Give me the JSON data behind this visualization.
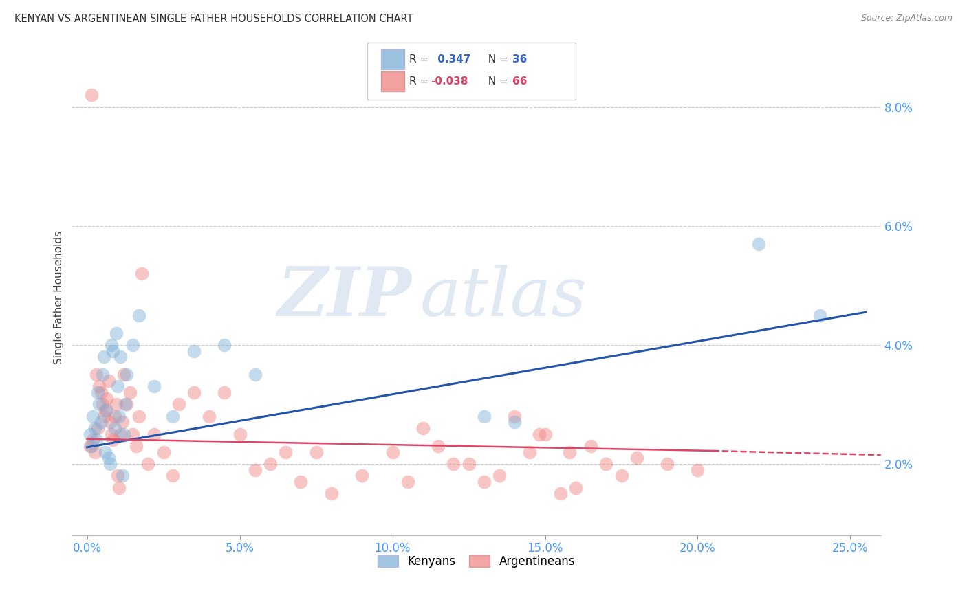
{
  "title": "KENYAN VS ARGENTINEAN SINGLE FATHER HOUSEHOLDS CORRELATION CHART",
  "source": "Source: ZipAtlas.com",
  "xlabel_vals": [
    0.0,
    5.0,
    10.0,
    15.0,
    20.0,
    25.0
  ],
  "ylabel_vals": [
    2.0,
    4.0,
    6.0,
    8.0
  ],
  "xlim": [
    -0.5,
    26.0
  ],
  "ylim": [
    0.8,
    8.8
  ],
  "ylabel": "Single Father Households",
  "watermark_zip": "ZIP",
  "watermark_atlas": "atlas",
  "kenyan_color": "#7aaed6",
  "argentinean_color": "#f08080",
  "kenyan_line_color": "#2255aa",
  "argentinean_line_color": "#dd4466",
  "background_color": "#ffffff",
  "grid_color": "#cccccc",
  "kenyan_x": [
    0.1,
    0.15,
    0.2,
    0.25,
    0.3,
    0.35,
    0.4,
    0.45,
    0.5,
    0.55,
    0.6,
    0.65,
    0.7,
    0.75,
    0.8,
    0.85,
    0.9,
    0.95,
    1.0,
    1.05,
    1.1,
    1.15,
    1.2,
    1.25,
    1.3,
    1.5,
    1.7,
    2.2,
    2.8,
    3.5,
    4.5,
    5.5,
    13.0,
    14.0,
    22.0,
    24.0
  ],
  "kenyan_y": [
    2.5,
    2.3,
    2.8,
    2.6,
    2.4,
    3.2,
    3.0,
    2.7,
    3.5,
    3.8,
    2.2,
    2.9,
    2.1,
    2.0,
    4.0,
    3.9,
    2.6,
    4.2,
    3.3,
    2.8,
    3.8,
    1.8,
    2.5,
    3.0,
    3.5,
    4.0,
    4.5,
    3.3,
    2.8,
    3.9,
    4.0,
    3.5,
    2.8,
    2.7,
    5.7,
    4.5
  ],
  "argentinean_x": [
    0.1,
    0.15,
    0.2,
    0.25,
    0.3,
    0.35,
    0.4,
    0.45,
    0.5,
    0.55,
    0.6,
    0.65,
    0.7,
    0.75,
    0.8,
    0.85,
    0.9,
    0.95,
    1.0,
    1.05,
    1.1,
    1.15,
    1.2,
    1.3,
    1.4,
    1.5,
    1.6,
    1.7,
    1.8,
    2.0,
    2.2,
    2.5,
    2.8,
    3.0,
    3.5,
    4.0,
    4.5,
    5.0,
    5.5,
    6.0,
    6.5,
    7.0,
    7.5,
    8.0,
    9.0,
    10.0,
    11.0,
    12.0,
    13.0,
    14.0,
    14.5,
    15.0,
    15.5,
    16.5,
    17.0,
    18.0,
    19.0,
    20.0,
    17.5,
    15.8,
    14.8,
    13.5,
    12.5,
    11.5,
    10.5,
    16.0
  ],
  "argentinean_y": [
    2.3,
    8.2,
    2.4,
    2.2,
    3.5,
    2.6,
    3.3,
    3.2,
    3.0,
    2.8,
    2.9,
    3.1,
    3.4,
    2.7,
    2.5,
    2.4,
    2.8,
    3.0,
    1.8,
    1.6,
    2.5,
    2.7,
    3.5,
    3.0,
    3.2,
    2.5,
    2.3,
    2.8,
    5.2,
    2.0,
    2.5,
    2.2,
    1.8,
    3.0,
    3.2,
    2.8,
    3.2,
    2.5,
    1.9,
    2.0,
    2.2,
    1.7,
    2.2,
    1.5,
    1.8,
    2.2,
    2.6,
    2.0,
    1.7,
    2.8,
    2.2,
    2.5,
    1.5,
    2.3,
    2.0,
    2.1,
    2.0,
    1.9,
    1.8,
    2.2,
    2.5,
    1.8,
    2.0,
    2.3,
    1.7,
    1.6
  ],
  "kenyan_line_x0": 0.0,
  "kenyan_line_x1": 25.5,
  "kenyan_line_y0": 2.28,
  "kenyan_line_y1": 4.55,
  "arg_solid_x0": 0.0,
  "arg_solid_x1": 20.5,
  "arg_solid_y0": 2.42,
  "arg_solid_y1": 2.22,
  "arg_dash_x0": 20.5,
  "arg_dash_x1": 26.0,
  "arg_dash_y0": 2.22,
  "arg_dash_y1": 2.15
}
